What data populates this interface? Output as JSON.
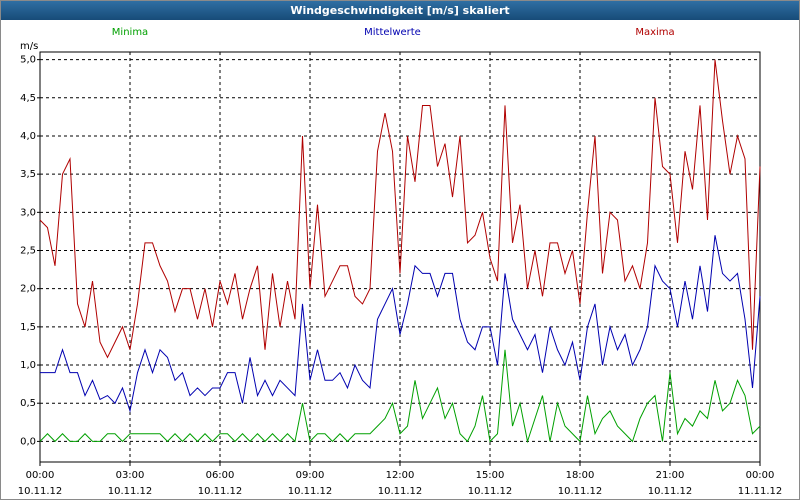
{
  "chart_data": {
    "type": "line",
    "title": "Windgeschwindigkeit [m/s] skaliert",
    "y_label": "m/s",
    "x": [
      0,
      0.25,
      0.5,
      0.75,
      1,
      1.25,
      1.5,
      1.75,
      2,
      2.25,
      2.5,
      2.75,
      3,
      3.25,
      3.5,
      3.75,
      4,
      4.25,
      4.5,
      4.75,
      5,
      5.25,
      5.5,
      5.75,
      6,
      6.25,
      6.5,
      6.75,
      7,
      7.25,
      7.5,
      7.75,
      8,
      8.25,
      8.5,
      8.75,
      9,
      9.25,
      9.5,
      9.75,
      10,
      10.25,
      10.5,
      10.75,
      11,
      11.25,
      11.5,
      11.75,
      12,
      12.25,
      12.5,
      12.75,
      13,
      13.25,
      13.5,
      13.75,
      14,
      14.25,
      14.5,
      14.75,
      15,
      15.25,
      15.5,
      15.75,
      16,
      16.25,
      16.5,
      16.75,
      17,
      17.25,
      17.5,
      17.75,
      18,
      18.25,
      18.5,
      18.75,
      19,
      19.25,
      19.5,
      19.75,
      20,
      20.25,
      20.5,
      20.75,
      21,
      21.25,
      21.5,
      21.75,
      22,
      22.25,
      22.5,
      22.75,
      23,
      23.25,
      23.5,
      23.75,
      24
    ],
    "xlim": [
      0,
      24
    ],
    "xticks": [
      {
        "value": 0,
        "label": "00:00"
      },
      {
        "value": 3,
        "label": "03:00"
      },
      {
        "value": 6,
        "label": "06:00"
      },
      {
        "value": 9,
        "label": "09:00"
      },
      {
        "value": 12,
        "label": "12:00"
      },
      {
        "value": 15,
        "label": "15:00"
      },
      {
        "value": 18,
        "label": "18:00"
      },
      {
        "value": 21,
        "label": "21:00"
      },
      {
        "value": 24,
        "label": "00:00"
      }
    ],
    "xtick_dates": [
      "10.11.12",
      "10.11.12",
      "10.11.12",
      "10.11.12",
      "10.11.12",
      "10.11.12",
      "10.11.12",
      "10.11.12",
      "11.11.12"
    ],
    "ylim": [
      -0.27,
      5.1
    ],
    "yticks": [
      {
        "value": 0,
        "label": "0,0"
      },
      {
        "value": 0.5,
        "label": "0,5"
      },
      {
        "value": 1,
        "label": "1,0"
      },
      {
        "value": 1.5,
        "label": "1,5"
      },
      {
        "value": 2,
        "label": "2,0"
      },
      {
        "value": 2.5,
        "label": "2,5"
      },
      {
        "value": 3,
        "label": "3,0"
      },
      {
        "value": 3.5,
        "label": "3,5"
      },
      {
        "value": 4,
        "label": "4,0"
      },
      {
        "value": 4.5,
        "label": "4,5"
      },
      {
        "value": 5,
        "label": "5,0"
      }
    ],
    "grid": true,
    "series": [
      {
        "name": "Minima",
        "color": "#00a000",
        "values": [
          0.0,
          0.1,
          0.0,
          0.1,
          0.0,
          0.0,
          0.1,
          0.0,
          0.0,
          0.1,
          0.1,
          0.0,
          0.1,
          0.1,
          0.1,
          0.1,
          0.1,
          0.0,
          0.1,
          0.0,
          0.1,
          0.0,
          0.1,
          0.0,
          0.1,
          0.1,
          0.0,
          0.1,
          0.0,
          0.1,
          0.0,
          0.1,
          0.0,
          0.1,
          0.0,
          0.5,
          0.0,
          0.1,
          0.1,
          0.0,
          0.1,
          0.0,
          0.1,
          0.1,
          0.1,
          0.2,
          0.3,
          0.5,
          0.1,
          0.2,
          0.8,
          0.3,
          0.5,
          0.7,
          0.3,
          0.5,
          0.1,
          0.0,
          0.2,
          0.6,
          0.0,
          0.1,
          1.2,
          0.2,
          0.5,
          0.0,
          0.3,
          0.6,
          0.0,
          0.5,
          0.2,
          0.1,
          0.0,
          0.6,
          0.1,
          0.3,
          0.4,
          0.2,
          0.1,
          0.0,
          0.3,
          0.5,
          0.6,
          0.0,
          0.9,
          0.1,
          0.3,
          0.2,
          0.4,
          0.3,
          0.8,
          0.4,
          0.5,
          0.8,
          0.6,
          0.1,
          0.2
        ]
      },
      {
        "name": "Mittelwerte",
        "color": "#0000b0",
        "values": [
          0.9,
          0.9,
          0.9,
          1.2,
          0.9,
          0.9,
          0.6,
          0.8,
          0.55,
          0.6,
          0.5,
          0.7,
          0.4,
          0.9,
          1.2,
          0.9,
          1.2,
          1.1,
          0.8,
          0.9,
          0.6,
          0.7,
          0.6,
          0.7,
          0.7,
          0.9,
          0.9,
          0.5,
          1.1,
          0.6,
          0.8,
          0.6,
          0.8,
          0.7,
          0.6,
          1.8,
          0.8,
          1.2,
          0.8,
          0.8,
          0.9,
          0.7,
          1.0,
          0.8,
          0.7,
          1.6,
          1.8,
          2.0,
          1.4,
          1.8,
          2.3,
          2.2,
          2.2,
          1.9,
          2.2,
          2.2,
          1.6,
          1.3,
          1.2,
          1.5,
          1.5,
          1.0,
          2.2,
          1.6,
          1.4,
          1.2,
          1.4,
          0.9,
          1.5,
          1.2,
          1.0,
          1.3,
          0.8,
          1.5,
          1.8,
          1.0,
          1.5,
          1.2,
          1.4,
          1.0,
          1.2,
          1.5,
          2.3,
          2.1,
          2.0,
          1.5,
          2.1,
          1.6,
          2.3,
          1.7,
          2.7,
          2.2,
          2.1,
          2.2,
          1.6,
          0.7,
          1.9
        ]
      },
      {
        "name": "Maxima",
        "color": "#b00000",
        "values": [
          2.9,
          2.8,
          2.3,
          3.5,
          3.7,
          1.8,
          1.5,
          2.1,
          1.3,
          1.1,
          1.3,
          1.5,
          1.2,
          1.8,
          2.6,
          2.6,
          2.3,
          2.1,
          1.7,
          2.0,
          2.0,
          1.6,
          2.0,
          1.5,
          2.1,
          1.8,
          2.2,
          1.6,
          2.0,
          2.3,
          1.2,
          2.2,
          1.5,
          2.1,
          1.6,
          4.0,
          2.0,
          3.1,
          1.9,
          2.1,
          2.3,
          2.3,
          1.9,
          1.8,
          2.0,
          3.8,
          4.3,
          3.8,
          2.2,
          4.0,
          3.4,
          4.4,
          4.4,
          3.6,
          3.9,
          3.2,
          4.0,
          2.6,
          2.7,
          3.0,
          2.4,
          2.1,
          4.4,
          2.6,
          3.1,
          2.0,
          2.5,
          1.9,
          2.6,
          2.6,
          2.2,
          2.5,
          1.8,
          3.0,
          4.0,
          2.2,
          3.0,
          2.9,
          2.1,
          2.3,
          2.0,
          2.6,
          4.5,
          3.6,
          3.5,
          2.6,
          3.8,
          3.3,
          4.4,
          2.9,
          5.0,
          4.2,
          3.5,
          4.0,
          3.7,
          1.2,
          3.6
        ]
      }
    ]
  }
}
